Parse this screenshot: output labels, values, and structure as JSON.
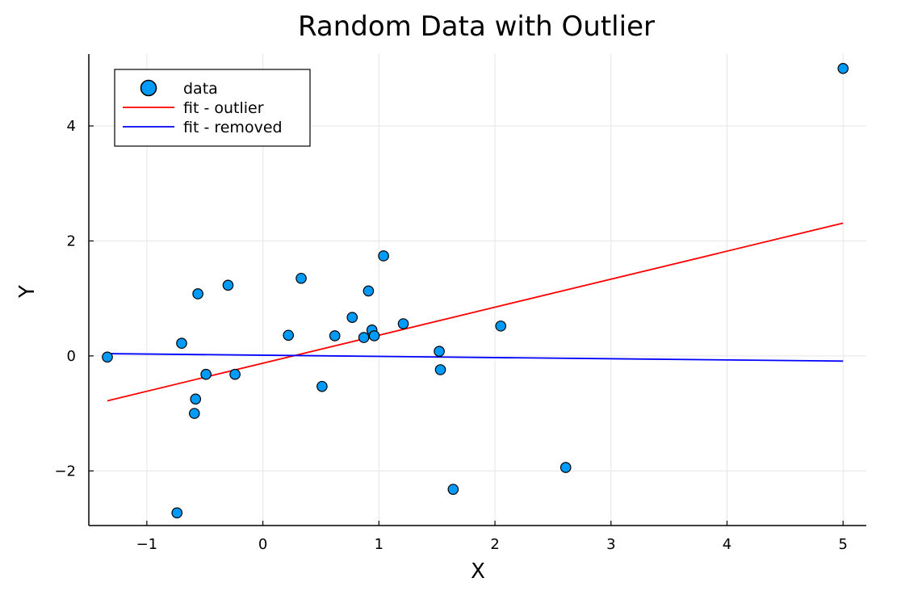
{
  "chart_data": {
    "type": "scatter",
    "title": "Random Data with Outlier",
    "xlabel": "X",
    "ylabel": "Y",
    "xlim": [
      -1.5,
      5.2
    ],
    "ylim": [
      -2.95,
      5.25
    ],
    "grid": true,
    "legend_position": "top-left",
    "x_ticks": [
      -1,
      0,
      1,
      2,
      3,
      4,
      5
    ],
    "x_tick_labels": [
      "−1",
      "0",
      "1",
      "2",
      "3",
      "4",
      "5"
    ],
    "y_ticks": [
      -2,
      0,
      2,
      4
    ],
    "y_tick_labels": [
      "−2",
      "0",
      "2",
      "4"
    ],
    "series": [
      {
        "name": "data",
        "kind": "scatter",
        "color": "#009af9",
        "points": [
          [
            -1.34,
            -0.02
          ],
          [
            -0.7,
            0.22
          ],
          [
            -0.56,
            1.08
          ],
          [
            -0.58,
            -0.75
          ],
          [
            -0.59,
            -1.0
          ],
          [
            -0.49,
            -0.32
          ],
          [
            -0.74,
            -2.73
          ],
          [
            -0.3,
            1.23
          ],
          [
            -0.24,
            -0.32
          ],
          [
            0.22,
            0.36
          ],
          [
            0.33,
            1.35
          ],
          [
            0.51,
            -0.53
          ],
          [
            0.62,
            0.35
          ],
          [
            0.77,
            0.67
          ],
          [
            0.87,
            0.32
          ],
          [
            0.91,
            1.13
          ],
          [
            0.94,
            0.45
          ],
          [
            0.96,
            0.35
          ],
          [
            1.04,
            1.74
          ],
          [
            1.21,
            0.56
          ],
          [
            1.52,
            0.08
          ],
          [
            1.53,
            -0.24
          ],
          [
            1.64,
            -2.32
          ],
          [
            2.05,
            0.52
          ],
          [
            2.61,
            -1.94
          ],
          [
            5.0,
            5.0
          ]
        ]
      },
      {
        "name": "fit - outlier",
        "kind": "line",
        "color": "#ff0000",
        "points": [
          [
            -1.34,
            -0.78
          ],
          [
            5.0,
            2.31
          ]
        ]
      },
      {
        "name": "fit - removed",
        "kind": "line",
        "color": "#0000ff",
        "points": [
          [
            -1.34,
            0.04
          ],
          [
            5.0,
            -0.09
          ]
        ]
      }
    ]
  }
}
